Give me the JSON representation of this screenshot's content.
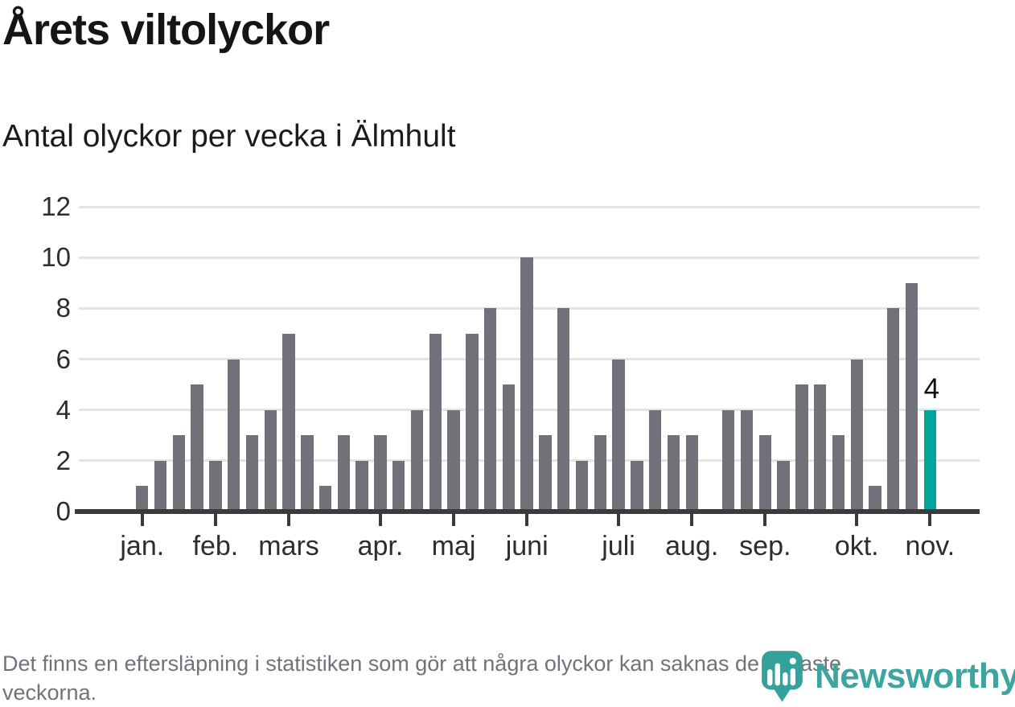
{
  "header": {
    "title": "Årets viltolyckor",
    "subtitle": "Antal olyckor per vecka i Älmhult"
  },
  "chart_data": {
    "type": "bar",
    "title": "Årets viltolyckor",
    "subtitle": "Antal olyckor per vecka i Älmhult",
    "x_unit": "vecka",
    "weeks": 44,
    "values": [
      1,
      2,
      3,
      5,
      2,
      6,
      3,
      4,
      7,
      3,
      1,
      3,
      2,
      3,
      2,
      4,
      7,
      4,
      7,
      8,
      5,
      10,
      3,
      8,
      2,
      3,
      6,
      2,
      4,
      3,
      3,
      0,
      4,
      4,
      3,
      2,
      5,
      5,
      3,
      6,
      1,
      8,
      9,
      4
    ],
    "month_ticks": [
      {
        "label": "jan.",
        "week": 1
      },
      {
        "label": "feb.",
        "week": 5
      },
      {
        "label": "mars",
        "week": 9
      },
      {
        "label": "apr.",
        "week": 14
      },
      {
        "label": "maj",
        "week": 18
      },
      {
        "label": "juni",
        "week": 22
      },
      {
        "label": "juli",
        "week": 27
      },
      {
        "label": "aug.",
        "week": 31
      },
      {
        "label": "sep.",
        "week": 35
      },
      {
        "label": "okt.",
        "week": 40
      },
      {
        "label": "nov.",
        "week": 44
      }
    ],
    "y_ticks": [
      0,
      2,
      4,
      6,
      8,
      10,
      12
    ],
    "ylim": [
      0,
      12
    ],
    "grid": true,
    "legend": "none",
    "bar_color": "#71717a",
    "highlight_week": 44,
    "highlight_color": "#00a69c",
    "last_bar_label": "4"
  },
  "footer": {
    "note": "Det finns en eftersläpning i statistiken som gör att några olyckor kan saknas de senaste veckorna."
  },
  "branding": {
    "name": "Newsworthy",
    "icon": "newsworthy-pin-bar-chart-icon",
    "teal": "#3ea49f"
  }
}
